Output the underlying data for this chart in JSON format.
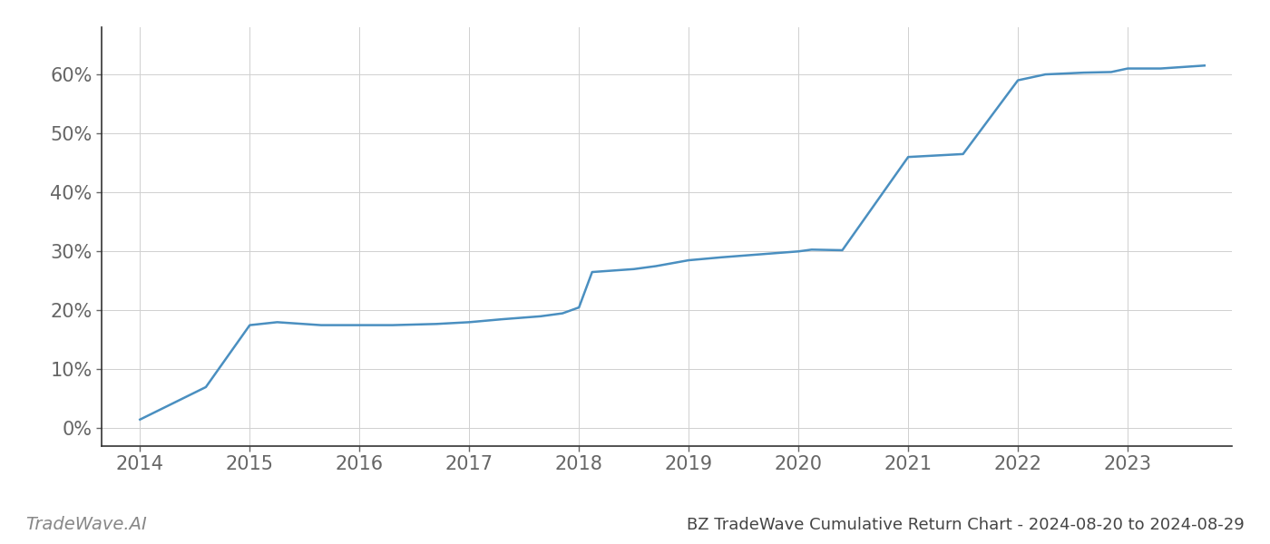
{
  "x_values": [
    2014.0,
    2014.6,
    2015.0,
    2015.25,
    2015.65,
    2016.0,
    2016.3,
    2016.7,
    2017.0,
    2017.3,
    2017.65,
    2017.85,
    2018.0,
    2018.12,
    2018.5,
    2018.7,
    2019.0,
    2019.3,
    2019.65,
    2020.0,
    2020.12,
    2020.4,
    2021.0,
    2021.5,
    2022.0,
    2022.25,
    2022.6,
    2022.85,
    2023.0,
    2023.3,
    2023.7
  ],
  "y_values": [
    1.5,
    7.0,
    17.5,
    18.0,
    17.5,
    17.5,
    17.5,
    17.7,
    18.0,
    18.5,
    19.0,
    19.5,
    20.5,
    26.5,
    27.0,
    27.5,
    28.5,
    29.0,
    29.5,
    30.0,
    30.3,
    30.2,
    46.0,
    46.5,
    59.0,
    60.0,
    60.3,
    60.4,
    61.0,
    61.0,
    61.5
  ],
  "line_color": "#4a8fc0",
  "line_width": 1.8,
  "title": "BZ TradeWave Cumulative Return Chart - 2024-08-20 to 2024-08-29",
  "watermark": "TradeWave.AI",
  "xlim": [
    2013.65,
    2023.95
  ],
  "ylim": [
    -3,
    68
  ],
  "yticks": [
    0,
    10,
    20,
    30,
    40,
    50,
    60
  ],
  "xticks": [
    2014,
    2015,
    2016,
    2017,
    2018,
    2019,
    2020,
    2021,
    2022,
    2023
  ],
  "background_color": "#ffffff",
  "grid_color": "#d0d0d0",
  "tick_fontsize": 15,
  "title_fontsize": 13,
  "watermark_fontsize": 14,
  "spine_color": "#333333"
}
